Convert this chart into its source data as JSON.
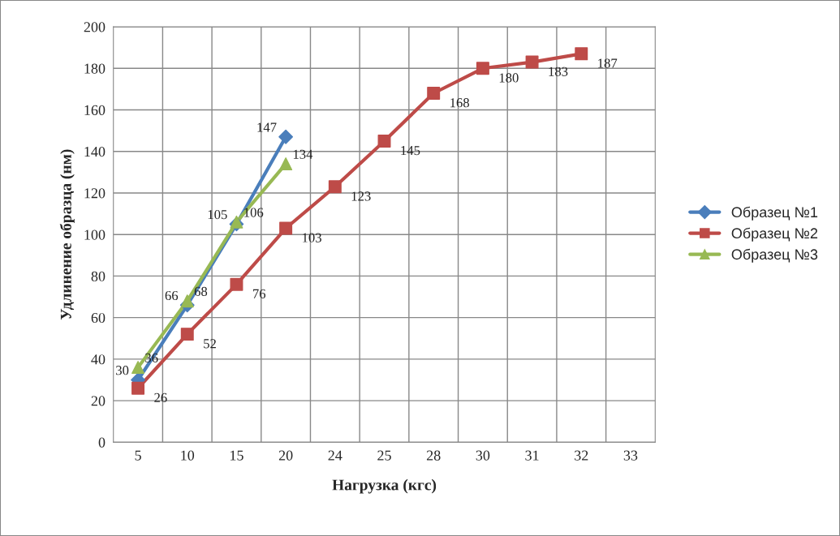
{
  "chart_data": {
    "type": "line",
    "xlabel": "Нагрузка (кгс)",
    "ylabel": "Удлинение образца (нм)",
    "categories": [
      "5",
      "10",
      "15",
      "20",
      "24",
      "25",
      "28",
      "30",
      "31",
      "32",
      "33"
    ],
    "series": [
      {
        "name": "Образец №1",
        "color": "#4a7ebb",
        "marker": "diamond",
        "values": [
          30,
          66,
          105,
          147,
          null,
          null,
          null,
          null,
          null,
          null,
          null
        ]
      },
      {
        "name": "Образец №2",
        "color": "#be4b48",
        "marker": "square",
        "values": [
          26,
          52,
          76,
          103,
          123,
          145,
          168,
          180,
          183,
          187,
          null
        ]
      },
      {
        "name": "Образец №3",
        "color": "#98b954",
        "marker": "triangle",
        "values": [
          36,
          68,
          106,
          134,
          null,
          null,
          null,
          null,
          null,
          null,
          null
        ]
      }
    ],
    "ylim": [
      0,
      200
    ],
    "yticks": [
      0,
      20,
      40,
      60,
      80,
      100,
      120,
      140,
      160,
      180,
      200
    ],
    "grid": true,
    "legend": "right",
    "data_labels": true
  }
}
